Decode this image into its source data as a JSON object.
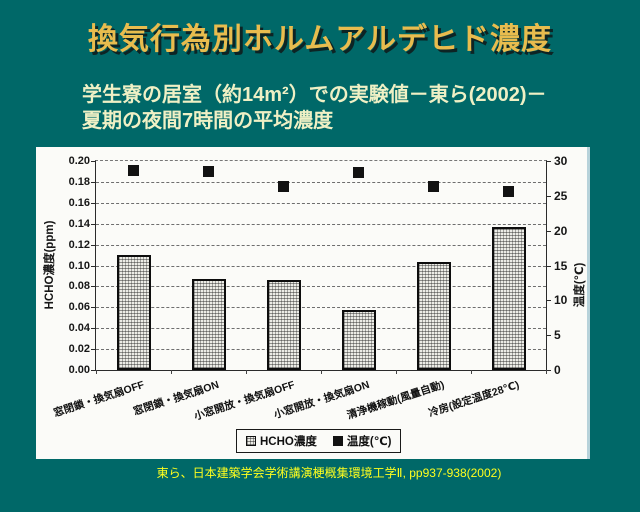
{
  "slide": {
    "title": "換気行為別ホルムアルデヒド濃度",
    "subtitle_line1": "学生寮の居室（約14m²）での実験値－東ら(2002)－",
    "subtitle_line2": "夏期の夜間7時間の平均濃度",
    "citation": "東ら、日本建築学会学術講演梗概集環境工学Ⅱ, pp937-938(2002)",
    "colors": {
      "background": "#006868",
      "title_text": "#E8BC4E",
      "subtitle_text": "#EFF0C5",
      "citation_text": "#FFFF1E",
      "chart_background": "#FBFBF8",
      "bar_fill": "#ECECE6",
      "bar_border": "#0d0d0d",
      "point_fill": "#121212"
    }
  },
  "chart_data": {
    "type": "bar",
    "subtype": "combo-bar-scatter",
    "categories": [
      "窓閉鎖・換気扇OFF",
      "窓閉鎖・換気扇ON",
      "小窓開放・換気扇OFF",
      "小窓開放・換気扇ON",
      "清浄機稼動(風量自動)",
      "冷房(設定温度28℃)"
    ],
    "series": [
      {
        "name": "HCHO濃度",
        "type": "bar",
        "axis": "left",
        "values": [
          0.11,
          0.087,
          0.086,
          0.057,
          0.103,
          0.137
        ]
      },
      {
        "name": "温度(℃)",
        "type": "scatter",
        "axis": "right",
        "values": [
          28.7,
          28.5,
          26.3,
          28.4,
          26.4,
          25.6
        ]
      }
    ],
    "left_axis": {
      "label": "HCHO濃度(ppm)",
      "min": 0,
      "max": 0.2,
      "step": 0.02,
      "decimals": 2
    },
    "right_axis": {
      "label": "温度(℃)",
      "min": 0,
      "max": 30,
      "step": 5,
      "decimals": 0
    },
    "grid": true,
    "gridline_interval_left": 0.02,
    "legend_position": "bottom-inside"
  }
}
